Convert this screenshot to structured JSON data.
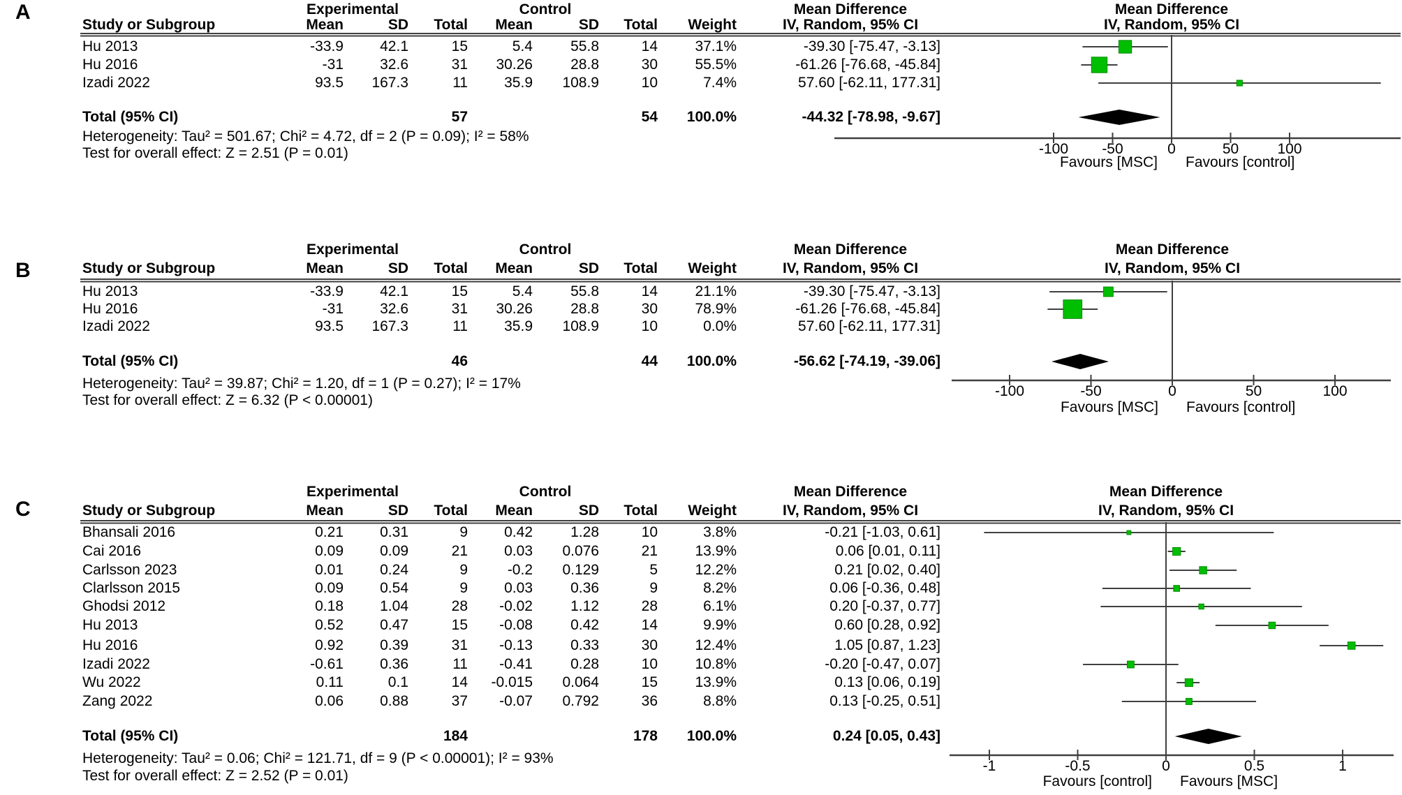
{
  "chart_data": [
    {
      "type": "forest",
      "label": "A",
      "headers": {
        "group_exp": "Experimental",
        "group_ctrl": "Control",
        "study": "Study or Subgroup",
        "mean": "Mean",
        "sd": "SD",
        "total": "Total",
        "weight": "Weight",
        "effect": "Mean Difference",
        "method": "IV, Random, 95% CI"
      },
      "rows": [
        {
          "study": "Hu 2013",
          "exp": [
            "-33.9",
            "42.1",
            "15"
          ],
          "ctrl": [
            "5.4",
            "55.8",
            "14"
          ],
          "weight": "37.1%",
          "ci_text": "-39.30 [-75.47, -3.13]",
          "est": -39.3,
          "lo": -75.47,
          "hi": -3.13
        },
        {
          "study": "Hu 2016",
          "exp": [
            "-31",
            "32.6",
            "31"
          ],
          "ctrl": [
            "30.26",
            "28.8",
            "30"
          ],
          "weight": "55.5%",
          "ci_text": "-61.26 [-76.68, -45.84]",
          "est": -61.26,
          "lo": -76.68,
          "hi": -45.84
        },
        {
          "study": "Izadi 2022",
          "exp": [
            "93.5",
            "167.3",
            "11"
          ],
          "ctrl": [
            "35.9",
            "108.9",
            "10"
          ],
          "weight": "7.4%",
          "ci_text": "57.60 [-62.11, 177.31]",
          "est": 57.6,
          "lo": -62.11,
          "hi": 177.31
        }
      ],
      "total": {
        "label": "Total (95% CI)",
        "n_exp": "57",
        "n_ctrl": "54",
        "weight": "100.0%",
        "ci_text": "-44.32 [-78.98, -9.67]",
        "est": -44.32,
        "lo": -78.98,
        "hi": -9.67
      },
      "heterogeneity": "Heterogeneity: Tau² = 501.67; Chi² = 4.72, df = 2 (P = 0.09); I² = 58%",
      "overall_test": "Test for overall effect: Z = 2.51 (P = 0.01)",
      "axis": {
        "ticks": [
          -100,
          -50,
          0,
          50,
          100
        ],
        "labels": [
          "-100",
          "-50",
          "0",
          "50",
          "100"
        ],
        "favours_left": "Favours [MSC]",
        "favours_right": "Favours [control]"
      }
    },
    {
      "type": "forest",
      "label": "B",
      "headers": {
        "group_exp": "Experimental",
        "group_ctrl": "Control",
        "study": "Study or Subgroup",
        "mean": "Mean",
        "sd": "SD",
        "total": "Total",
        "weight": "Weight",
        "effect": "Mean Difference",
        "method": "IV, Random, 95% CI"
      },
      "rows": [
        {
          "study": "Hu 2013",
          "exp": [
            "-33.9",
            "42.1",
            "15"
          ],
          "ctrl": [
            "5.4",
            "55.8",
            "14"
          ],
          "weight": "21.1%",
          "ci_text": "-39.30 [-75.47, -3.13]",
          "est": -39.3,
          "lo": -75.47,
          "hi": -3.13
        },
        {
          "study": "Hu 2016",
          "exp": [
            "-31",
            "32.6",
            "31"
          ],
          "ctrl": [
            "30.26",
            "28.8",
            "30"
          ],
          "weight": "78.9%",
          "ci_text": "-61.26 [-76.68, -45.84]",
          "est": -61.26,
          "lo": -76.68,
          "hi": -45.84
        },
        {
          "study": "Izadi 2022",
          "exp": [
            "93.5",
            "167.3",
            "11"
          ],
          "ctrl": [
            "35.9",
            "108.9",
            "10"
          ],
          "weight": "0.0%",
          "ci_text": "57.60 [-62.11, 177.31]",
          "est": 57.6,
          "lo": -62.11,
          "hi": 177.31
        }
      ],
      "total": {
        "label": "Total (95% CI)",
        "n_exp": "46",
        "n_ctrl": "44",
        "weight": "100.0%",
        "ci_text": "-56.62 [-74.19, -39.06]",
        "est": -56.62,
        "lo": -74.19,
        "hi": -39.06
      },
      "heterogeneity": "Heterogeneity: Tau² = 39.87; Chi² = 1.20, df = 1 (P = 0.27); I² = 17%",
      "overall_test": "Test for overall effect: Z = 6.32 (P < 0.00001)",
      "axis": {
        "ticks": [
          -100,
          -50,
          0,
          50,
          100
        ],
        "labels": [
          "-100",
          "-50",
          "0",
          "50",
          "100"
        ],
        "favours_left": "Favours [MSC]",
        "favours_right": "Favours [control]"
      }
    },
    {
      "type": "forest",
      "label": "C",
      "headers": {
        "group_exp": "Experimental",
        "group_ctrl": "Control",
        "study": "Study or Subgroup",
        "mean": "Mean",
        "sd": "SD",
        "total": "Total",
        "weight": "Weight",
        "effect": "Mean Difference",
        "method": "IV, Random, 95% CI"
      },
      "rows": [
        {
          "study": "Bhansali 2016",
          "exp": [
            "0.21",
            "0.31",
            "9"
          ],
          "ctrl": [
            "0.42",
            "1.28",
            "10"
          ],
          "weight": "3.8%",
          "ci_text": "-0.21 [-1.03, 0.61]",
          "est": -0.21,
          "lo": -1.03,
          "hi": 0.61
        },
        {
          "study": "Cai 2016",
          "exp": [
            "0.09",
            "0.09",
            "21"
          ],
          "ctrl": [
            "0.03",
            "0.076",
            "21"
          ],
          "weight": "13.9%",
          "ci_text": "0.06 [0.01, 0.11]",
          "est": 0.06,
          "lo": 0.01,
          "hi": 0.11
        },
        {
          "study": "Carlsson 2023",
          "exp": [
            "0.01",
            "0.24",
            "9"
          ],
          "ctrl": [
            "-0.2",
            "0.129",
            "5"
          ],
          "weight": "12.2%",
          "ci_text": "0.21 [0.02, 0.40]",
          "est": 0.21,
          "lo": 0.02,
          "hi": 0.4
        },
        {
          "study": "Clarlsson 2015",
          "exp": [
            "0.09",
            "0.54",
            "9"
          ],
          "ctrl": [
            "0.03",
            "0.36",
            "9"
          ],
          "weight": "8.2%",
          "ci_text": "0.06 [-0.36, 0.48]",
          "est": 0.06,
          "lo": -0.36,
          "hi": 0.48
        },
        {
          "study": "Ghodsi 2012",
          "exp": [
            "0.18",
            "1.04",
            "28"
          ],
          "ctrl": [
            "-0.02",
            "1.12",
            "28"
          ],
          "weight": "6.1%",
          "ci_text": "0.20 [-0.37, 0.77]",
          "est": 0.2,
          "lo": -0.37,
          "hi": 0.77
        },
        {
          "study": "Hu 2013",
          "exp": [
            "0.52",
            "0.47",
            "15"
          ],
          "ctrl": [
            "-0.08",
            "0.42",
            "14"
          ],
          "weight": "9.9%",
          "ci_text": "0.60 [0.28, 0.92]",
          "est": 0.6,
          "lo": 0.28,
          "hi": 0.92
        },
        {
          "study": "Hu 2016",
          "exp": [
            "0.92",
            "0.39",
            "31"
          ],
          "ctrl": [
            "-0.13",
            "0.33",
            "30"
          ],
          "weight": "12.4%",
          "ci_text": "1.05 [0.87, 1.23]",
          "est": 1.05,
          "lo": 0.87,
          "hi": 1.23
        },
        {
          "study": "Izadi 2022",
          "exp": [
            "-0.61",
            "0.36",
            "11"
          ],
          "ctrl": [
            "-0.41",
            "0.28",
            "10"
          ],
          "weight": "10.8%",
          "ci_text": "-0.20 [-0.47, 0.07]",
          "est": -0.2,
          "lo": -0.47,
          "hi": 0.07
        },
        {
          "study": "Wu 2022",
          "exp": [
            "0.11",
            "0.1",
            "14"
          ],
          "ctrl": [
            "-0.015",
            "0.064",
            "15"
          ],
          "weight": "13.9%",
          "ci_text": "0.13 [0.06, 0.19]",
          "est": 0.13,
          "lo": 0.06,
          "hi": 0.19
        },
        {
          "study": "Zang 2022",
          "exp": [
            "0.06",
            "0.88",
            "37"
          ],
          "ctrl": [
            "-0.07",
            "0.792",
            "36"
          ],
          "weight": "8.8%",
          "ci_text": "0.13 [-0.25, 0.51]",
          "est": 0.13,
          "lo": -0.25,
          "hi": 0.51
        }
      ],
      "total": {
        "label": "Total (95% CI)",
        "n_exp": "184",
        "n_ctrl": "178",
        "weight": "100.0%",
        "ci_text": "0.24 [0.05, 0.43]",
        "est": 0.24,
        "lo": 0.05,
        "hi": 0.43
      },
      "heterogeneity": "Heterogeneity: Tau² = 0.06; Chi² = 121.71, df = 9 (P < 0.00001); I² = 93%",
      "overall_test": "Test for overall effect: Z = 2.52 (P = 0.01)",
      "axis": {
        "ticks": [
          -1,
          -0.5,
          0,
          0.5,
          1
        ],
        "labels": [
          "-1",
          "-0.5",
          "0",
          "0.5",
          "1"
        ],
        "favours_left": "Favours [control]",
        "favours_right": "Favours [MSC]"
      }
    }
  ],
  "style": {
    "marker_color": "#00BE00",
    "marker_border": "#008A00",
    "line_color": "#3f3f3f",
    "diamond_color": "#000000"
  }
}
